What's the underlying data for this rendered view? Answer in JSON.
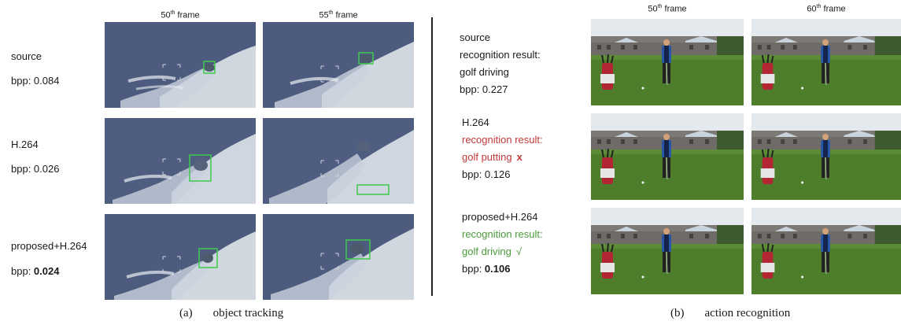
{
  "tracking": {
    "headers": [
      "50th frame",
      "55th frame"
    ],
    "rows": [
      {
        "name": "source",
        "bpp_label": "bpp: ",
        "bpp_value": "0.084",
        "bold": false
      },
      {
        "name": "H.264",
        "bpp_label": "bpp: ",
        "bpp_value": "0.026",
        "bold": false
      },
      {
        "name": "proposed+H.264",
        "bpp_label": "bpp: ",
        "bpp_value": "0.024",
        "bold": true
      }
    ],
    "caption_tag": "(a)",
    "caption_text": "object tracking",
    "box_color": "#3ec94a"
  },
  "recognition": {
    "headers": [
      "50th frame",
      "60th frame"
    ],
    "rows": [
      {
        "name": "source",
        "result_label": "recognition result:",
        "result": "golf driving",
        "mark": "",
        "bpp_label": "bpp: ",
        "bpp_value": "0.227",
        "color": "#1a1a1a"
      },
      {
        "name": "H.264",
        "result_label": "recognition result:",
        "result": "golf putting",
        "mark": "x",
        "bpp_label": "bpp: ",
        "bpp_value": "0.126",
        "color": "#c0393b"
      },
      {
        "name": "proposed+H.264",
        "result_label": "recognition result:",
        "result": "golf driving",
        "mark": "√",
        "bpp_label": "bpp: ",
        "bpp_value": "0.106",
        "color": "#4b9a3a"
      }
    ],
    "caption_tag": "(b)",
    "caption_text": "action recognition"
  }
}
